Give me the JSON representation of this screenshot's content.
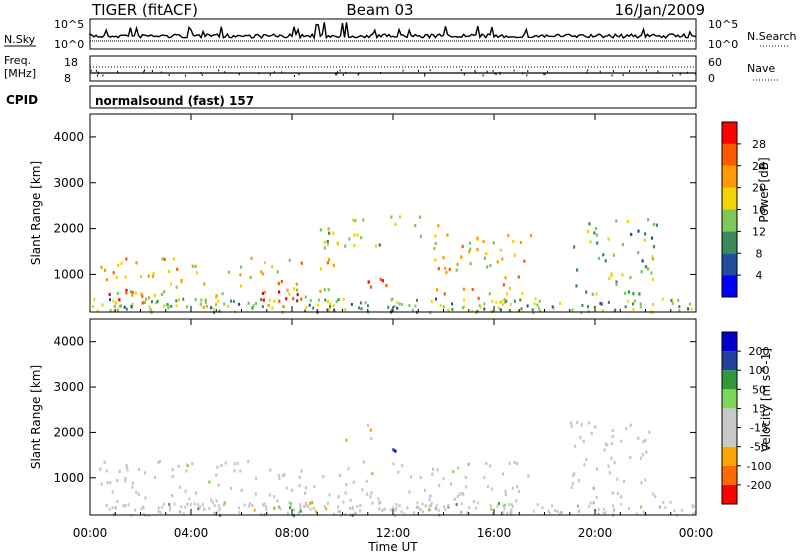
{
  "header": {
    "radar": "TIGER (fitACF)",
    "beam": "Beam 03",
    "date": "16/Jan/2009"
  },
  "meta_panels": {
    "nsky": {
      "label": "N.Sky",
      "ticks": [
        "10^5",
        "10^0"
      ]
    },
    "nsearch": {
      "label": "N.Search",
      "ticks": [
        "10^5",
        "10^0"
      ]
    },
    "freq": {
      "label": "Freq.",
      "unit": "[MHz]",
      "ticks": [
        "18",
        "8"
      ]
    },
    "nave": {
      "label": "Nave",
      "ticks": [
        "60",
        "0"
      ]
    },
    "cpid": {
      "label": "CPID",
      "value": "normalsound (fast) 157"
    }
  },
  "colors": {
    "power_scale": [
      "#0000ff",
      "#224c9c",
      "#3a8a5a",
      "#7fc75a",
      "#f2d400",
      "#ff9a00",
      "#ff5a00",
      "#ff0000"
    ],
    "velocity_scale": [
      "#ff0000",
      "#ff6a00",
      "#ffa500",
      "#c8c8c8",
      "#c8c8c8",
      "#7cd65a",
      "#2f9a3a",
      "#2040a0",
      "#0000d0"
    ]
  },
  "chart_data": [
    {
      "type": "heatmap",
      "title": "",
      "xlabel": "Time UT",
      "ylabel": "Slant Range [km]",
      "xticks": [
        "00:00",
        "04:00",
        "08:00",
        "12:00",
        "16:00",
        "20:00",
        "00:00"
      ],
      "yticks": [
        "1000",
        "2000",
        "3000",
        "4000"
      ],
      "ylim": [
        180,
        4500
      ],
      "colorbar": {
        "label": "Power [dB]",
        "ticks": [
          "4",
          "8",
          "12",
          "16",
          "20",
          "24",
          "28"
        ],
        "range": [
          0,
          30
        ]
      },
      "echo_regions": [
        {
          "t_start": 0.3,
          "t_end": 9.8,
          "r_low": 300,
          "r_high": 1400,
          "value": 18
        },
        {
          "t_start": 0.3,
          "t_end": 2.5,
          "r_low": 350,
          "r_high": 700,
          "value": 27
        },
        {
          "t_start": 6.5,
          "t_end": 8.5,
          "r_low": 400,
          "r_high": 700,
          "value": 27
        },
        {
          "t_start": 10.2,
          "t_end": 11.8,
          "r_low": 650,
          "r_high": 1000,
          "value": 28
        },
        {
          "t_start": 13.5,
          "t_end": 17.5,
          "r_low": 500,
          "r_high": 1900,
          "value": 18
        },
        {
          "t_start": 19.0,
          "t_end": 22.5,
          "r_low": 600,
          "r_high": 2300,
          "value": 12
        },
        {
          "t_start": 9.0,
          "t_end": 14.0,
          "r_low": 1600,
          "r_high": 2300,
          "value": 14
        }
      ]
    },
    {
      "type": "heatmap",
      "title": "",
      "xlabel": "Time UT",
      "ylabel": "Slant Range [km]",
      "xticks": [
        "00:00",
        "04:00",
        "08:00",
        "12:00",
        "16:00",
        "20:00",
        "00:00"
      ],
      "yticks": [
        "1000",
        "2000",
        "3000",
        "4000"
      ],
      "ylim": [
        180,
        4500
      ],
      "colorbar": {
        "label": "Velocity [m s^-1]",
        "ticks": [
          "200",
          "100",
          "50",
          "15",
          "-15",
          "-50",
          "-100",
          "-200"
        ],
        "range": [
          -250,
          250
        ]
      },
      "echo_regions": [
        {
          "t_start": 0.3,
          "t_end": 17.5,
          "r_low": 300,
          "r_high": 1400,
          "value": 0
        },
        {
          "t_start": 19.0,
          "t_end": 22.5,
          "r_low": 600,
          "r_high": 2300,
          "value": 0
        },
        {
          "t_start": 11.3,
          "t_end": 12.3,
          "r_low": 1450,
          "r_high": 1700,
          "value": 220
        },
        {
          "t_start": 10.0,
          "t_end": 11.2,
          "r_low": 1800,
          "r_high": 2200,
          "value": -60
        },
        {
          "t_start": 14.5,
          "t_end": 16.0,
          "r_low": 600,
          "r_high": 900,
          "value": -70
        },
        {
          "t_start": 7.5,
          "t_end": 9.0,
          "r_low": 200,
          "r_high": 500,
          "value": 60
        }
      ]
    }
  ]
}
